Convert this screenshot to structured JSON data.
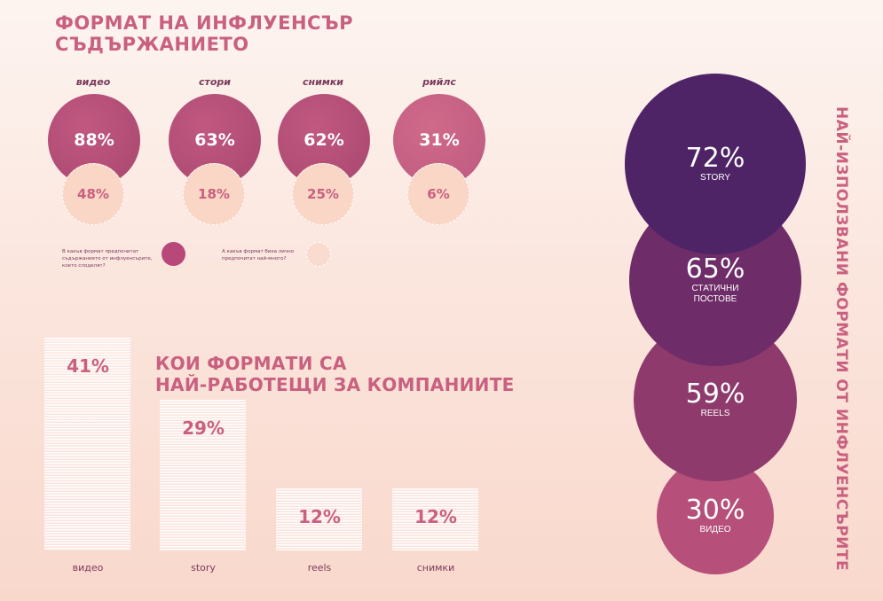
{
  "title": {
    "line1": "ФОРМАТ НА ИНФЛУЕНСЪР",
    "line2": "СЪДЪРЖАНИЕТО"
  },
  "legend": {
    "filled_text": "В какъв формат предпочитат съдържанието от инфлуенсърите, което споделят?",
    "dashed_text": "А какъв формат биха лично предпочитат най-много?"
  },
  "bar_title": {
    "line1": "КОИ ФОРМАТИ СА",
    "line2": "НАЙ-РАБОТЕЩИ ЗА КОМПАНИИТЕ"
  },
  "side_title": "НАЙ-ИЗПОЛЗВАНИ ФОРМАТИ ОТ ИНФЛУЕНСЪРИТЕ",
  "colors": {
    "accent": "#c9607f",
    "deep_purple": "#4e2466",
    "mid_purple": "#6e2c68",
    "plum": "#8e3a6c",
    "rose": "#b6507a"
  },
  "chart_data": [
    {
      "type": "bubble-pairs",
      "categories": [
        "видео",
        "стори",
        "снимки",
        "рийлс"
      ],
      "series": [
        {
          "values": [
            88,
            63,
            62,
            31
          ],
          "labels": [
            "88%",
            "63%",
            "62%",
            "31%"
          ]
        },
        {
          "values": [
            48,
            18,
            25,
            6
          ],
          "labels": [
            "48%",
            "18%",
            "25%",
            "6%"
          ]
        }
      ]
    },
    {
      "type": "bar",
      "title": "КОИ ФОРМАТИ СА НАЙ-РАБОТЕЩИ ЗА КОМПАНИИТЕ",
      "categories": [
        "видео",
        "story",
        "reels",
        "снимки"
      ],
      "values": [
        41,
        29,
        12,
        12
      ],
      "labels": [
        "41%",
        "29%",
        "12%",
        "12%"
      ]
    },
    {
      "type": "bubble",
      "title": "НАЙ-ИЗПОЛЗВАНИ ФОРМАТИ ОТ ИНФЛУЕНСЪРИТЕ",
      "categories": [
        "STORY",
        "СТАТИЧНИ ПОСТОВЕ",
        "REELS",
        "ВИДЕО"
      ],
      "values": [
        72,
        65,
        59,
        30
      ],
      "labels": [
        "72%",
        "65%",
        "59%",
        "30%"
      ],
      "colors": [
        "#4e2466",
        "#6e2c68",
        "#8e3a6c",
        "#b6507a"
      ]
    }
  ]
}
